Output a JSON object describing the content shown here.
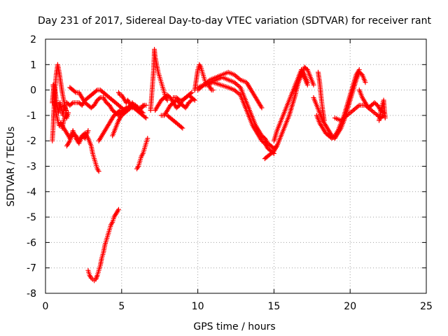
{
  "chart_data": {
    "type": "scatter",
    "title": "Day 231 of 2017, Sidereal Day-to-day VTEC variation (SDTVAR) for receiver rant",
    "xlabel": "GPS time / hours",
    "ylabel": "SDTVAR / TECUs",
    "xlim": [
      0,
      25
    ],
    "ylim": [
      -8,
      2
    ],
    "xticks": [
      0,
      5,
      10,
      15,
      20,
      25
    ],
    "yticks": [
      2,
      1,
      0,
      -1,
      -2,
      -3,
      -4,
      -5,
      -6,
      -7,
      -8
    ],
    "grid": true,
    "marker": "+",
    "marker_color": "#ff0000",
    "series": [
      {
        "name": "s1",
        "x": [
          0.45,
          0.5,
          0.55,
          0.6,
          0.7,
          0.8,
          0.9,
          1.0,
          1.1,
          1.2,
          1.3,
          1.4
        ],
        "y": [
          -2.0,
          -1.5,
          -0.8,
          -0.2,
          0.6,
          1.0,
          0.7,
          0.3,
          -0.1,
          -0.4,
          -0.7,
          -1.0
        ]
      },
      {
        "name": "s2",
        "x": [
          0.45,
          0.55,
          0.65,
          0.75,
          0.85,
          0.95,
          1.05,
          1.15,
          1.25,
          1.35
        ],
        "y": [
          -0.5,
          0.2,
          -0.1,
          -0.6,
          -0.9,
          -0.5,
          -0.7,
          -1.0,
          -0.6,
          -0.8
        ]
      },
      {
        "name": "s3",
        "x": [
          0.5,
          0.6,
          0.7,
          0.8,
          0.9,
          1.0,
          1.1,
          1.2,
          1.3,
          1.4,
          1.5
        ],
        "y": [
          0.2,
          -0.4,
          -0.9,
          -1.2,
          -1.4,
          -1.3,
          -1.5,
          -1.2,
          -1.0,
          -1.1,
          -0.9
        ]
      },
      {
        "name": "s4",
        "x": [
          1.0,
          1.2,
          1.4,
          1.6,
          1.8,
          2.0,
          2.2,
          2.4,
          2.6,
          2.8
        ],
        "y": [
          -1.3,
          -1.5,
          -1.7,
          -1.9,
          -1.7,
          -1.8,
          -2.0,
          -1.8,
          -1.9,
          -1.6
        ]
      },
      {
        "name": "s5",
        "x": [
          1.4,
          1.6,
          1.8,
          2.0,
          2.2,
          2.4,
          2.6,
          2.8,
          3.0,
          3.1,
          3.2,
          3.3,
          3.4,
          3.5
        ],
        "y": [
          -2.2,
          -2.0,
          -1.6,
          -1.9,
          -2.1,
          -1.8,
          -1.7,
          -1.9,
          -2.2,
          -2.5,
          -2.7,
          -2.9,
          -3.1,
          -3.2
        ]
      },
      {
        "name": "s6",
        "x": [
          1.4,
          1.6,
          1.8,
          2.0,
          2.2,
          2.4,
          2.6,
          2.8,
          3.0,
          3.2,
          3.4,
          3.6,
          3.8,
          4.0,
          4.2,
          4.4,
          4.6,
          4.8,
          5.0,
          5.2,
          5.4,
          5.6,
          5.8,
          6.0,
          6.2,
          6.4,
          6.6
        ],
        "y": [
          -0.5,
          -0.6,
          -0.5,
          -0.5,
          -0.5,
          -0.6,
          -0.4,
          -0.3,
          -0.2,
          -0.1,
          0.0,
          0.0,
          -0.1,
          -0.2,
          -0.3,
          -0.4,
          -0.5,
          -0.6,
          -0.7,
          -0.8,
          -0.7,
          -0.6,
          -0.7,
          -0.7,
          -0.8,
          -0.6,
          -0.6
        ]
      },
      {
        "name": "s7",
        "x": [
          1.6,
          1.8,
          2.0,
          2.2,
          2.4,
          2.6,
          2.8,
          3.0,
          3.2,
          3.4,
          3.6,
          3.8,
          4.0,
          4.2,
          4.4,
          4.6,
          4.8,
          5.0,
          5.2,
          5.4,
          5.6,
          5.8,
          6.0,
          6.2,
          6.4
        ],
        "y": [
          0.1,
          0.0,
          -0.1,
          -0.1,
          -0.3,
          -0.5,
          -0.6,
          -0.7,
          -0.6,
          -0.4,
          -0.3,
          -0.3,
          -0.5,
          -0.6,
          -0.8,
          -0.9,
          -1.0,
          -0.9,
          -0.8,
          -0.7,
          -0.6,
          -0.6,
          -0.7,
          -0.8,
          -0.9
        ]
      },
      {
        "name": "s8",
        "x": [
          3.5,
          3.7,
          3.9,
          4.1,
          4.3,
          4.5,
          4.7,
          4.9,
          5.1,
          5.3,
          5.5,
          5.7,
          5.9,
          6.1,
          6.3,
          6.5
        ],
        "y": [
          -2.0,
          -1.8,
          -1.6,
          -1.4,
          -1.2,
          -1.0,
          -0.9,
          -0.8,
          -0.8,
          -0.7,
          -0.7,
          -0.6,
          -0.6,
          -0.7,
          -0.7,
          -0.6
        ]
      },
      {
        "name": "s9",
        "x": [
          4.4,
          4.6,
          4.8,
          5.0,
          5.2,
          5.4,
          5.6,
          5.8,
          6.0,
          6.2,
          6.4,
          6.6
        ],
        "y": [
          -1.8,
          -1.5,
          -1.2,
          -1.0,
          -0.9,
          -0.8,
          -0.7,
          -0.7,
          -0.8,
          -0.9,
          -1.0,
          -1.1
        ]
      },
      {
        "name": "s10",
        "x": [
          2.8,
          2.9,
          3.0,
          3.1,
          3.2,
          3.3,
          3.4,
          3.5,
          3.6,
          3.7,
          3.8,
          3.9,
          4.0,
          4.1,
          4.2,
          4.3,
          4.4,
          4.5,
          4.6,
          4.7,
          4.8
        ],
        "y": [
          -7.1,
          -7.3,
          -7.4,
          -7.45,
          -7.5,
          -7.45,
          -7.3,
          -7.1,
          -6.9,
          -6.6,
          -6.4,
          -6.1,
          -5.9,
          -5.7,
          -5.5,
          -5.3,
          -5.2,
          -5.0,
          -4.9,
          -4.8,
          -4.7
        ]
      },
      {
        "name": "s11",
        "x": [
          6.0,
          6.1,
          6.2,
          6.3,
          6.4,
          6.5,
          6.6,
          6.7
        ],
        "y": [
          -3.1,
          -3.0,
          -2.8,
          -2.6,
          -2.5,
          -2.3,
          -2.1,
          -1.9
        ]
      },
      {
        "name": "s12",
        "x": [
          4.8,
          4.9,
          5.0,
          5.1,
          5.2,
          5.3,
          5.4,
          5.5,
          5.6,
          5.7,
          5.8,
          5.9,
          6.0
        ],
        "y": [
          -0.1,
          -0.2,
          -0.2,
          -0.3,
          -0.4,
          -0.5,
          -0.4,
          -0.5,
          -0.6,
          -0.5,
          -0.6,
          -0.6,
          -0.7
        ]
      },
      {
        "name": "s13",
        "x": [
          6.9,
          7.0,
          7.1,
          7.15,
          7.2,
          7.3,
          7.4,
          7.5,
          7.6,
          7.7,
          7.8,
          7.9,
          8.0
        ],
        "y": [
          -0.8,
          0.0,
          0.8,
          1.6,
          1.3,
          1.0,
          0.7,
          0.5,
          0.3,
          0.1,
          -0.1,
          -0.3,
          -0.4
        ]
      },
      {
        "name": "s14",
        "x": [
          7.2,
          7.4,
          7.6,
          7.8,
          8.0,
          8.2,
          8.4,
          8.6,
          8.8,
          9.0,
          9.2,
          9.4,
          9.6
        ],
        "y": [
          -0.8,
          -0.6,
          -0.4,
          -0.3,
          -0.2,
          -0.3,
          -0.5,
          -0.7,
          -0.6,
          -0.4,
          -0.3,
          -0.2,
          -0.1
        ]
      },
      {
        "name": "s15",
        "x": [
          7.6,
          7.8,
          8.0,
          8.2,
          8.4,
          8.6,
          8.8,
          9.0,
          9.2,
          9.4,
          9.6
        ],
        "y": [
          -1.0,
          -1.0,
          -0.8,
          -0.6,
          -0.5,
          -0.4,
          -0.5,
          -0.6,
          -0.7,
          -0.5,
          -0.4
        ]
      },
      {
        "name": "s16",
        "x": [
          8.0,
          8.2,
          8.4,
          8.6,
          8.8,
          9.0
        ],
        "y": [
          -1.0,
          -1.1,
          -1.2,
          -1.3,
          -1.4,
          -1.5
        ]
      },
      {
        "name": "s17",
        "x": [
          8.4,
          8.6,
          8.8,
          9.0,
          9.2,
          9.4,
          9.6,
          9.8
        ],
        "y": [
          -0.3,
          -0.3,
          -0.4,
          -0.4,
          -0.3,
          -0.2,
          -0.3,
          -0.4
        ]
      },
      {
        "name": "s18",
        "x": [
          9.8,
          9.9,
          10.0,
          10.1,
          10.2,
          10.3,
          10.4,
          10.5,
          10.6,
          10.7,
          10.8,
          10.9,
          11.0
        ],
        "y": [
          0.0,
          0.4,
          0.8,
          1.0,
          0.9,
          0.7,
          0.5,
          0.3,
          0.2,
          0.2,
          0.1,
          0.0,
          0.0
        ]
      },
      {
        "name": "s19",
        "x": [
          10.0,
          10.4,
          10.8,
          11.2,
          11.6,
          12.0,
          12.4,
          12.8,
          13.2,
          13.4,
          13.6,
          13.8,
          14.0,
          14.2
        ],
        "y": [
          0.0,
          0.2,
          0.4,
          0.5,
          0.6,
          0.7,
          0.6,
          0.4,
          0.3,
          0.1,
          -0.1,
          -0.3,
          -0.5,
          -0.7
        ]
      },
      {
        "name": "s20",
        "x": [
          10.0,
          10.4,
          10.8,
          11.2,
          11.6,
          12.0,
          12.4,
          12.8,
          13.0,
          13.2,
          13.4,
          13.6,
          13.8,
          14.0,
          14.2,
          14.4,
          14.6,
          14.8,
          15.0,
          15.2
        ],
        "y": [
          0.1,
          0.2,
          0.3,
          0.4,
          0.5,
          0.4,
          0.3,
          0.1,
          -0.2,
          -0.5,
          -0.8,
          -1.1,
          -1.4,
          -1.6,
          -1.8,
          -1.9,
          -2.1,
          -2.2,
          -2.3,
          -2.2
        ]
      },
      {
        "name": "s21",
        "x": [
          10.5,
          11.0,
          11.5,
          12.0,
          12.4,
          12.8,
          13.0,
          13.2,
          13.4,
          13.6,
          13.8,
          14.0,
          14.2,
          14.4,
          14.6,
          14.8,
          15.0
        ],
        "y": [
          0.2,
          0.3,
          0.2,
          0.1,
          0.0,
          -0.2,
          -0.5,
          -0.8,
          -1.1,
          -1.4,
          -1.6,
          -1.8,
          -2.0,
          -2.1,
          -2.3,
          -2.4,
          -2.5
        ]
      },
      {
        "name": "s22",
        "x": [
          14.4,
          14.6,
          14.8,
          15.0,
          15.2,
          15.4,
          15.6,
          15.8,
          16.0,
          16.2,
          16.4,
          16.6,
          16.8,
          17.0,
          17.2
        ],
        "y": [
          -2.7,
          -2.6,
          -2.5,
          -2.4,
          -2.2,
          -1.9,
          -1.6,
          -1.3,
          -1.0,
          -0.6,
          -0.2,
          0.3,
          0.7,
          0.5,
          0.2
        ]
      },
      {
        "name": "s23",
        "x": [
          15.0,
          15.2,
          15.4,
          15.6,
          15.8,
          16.0,
          16.2,
          16.4,
          16.6,
          16.8,
          17.0,
          17.2
        ],
        "y": [
          -2.0,
          -1.6,
          -1.3,
          -1.0,
          -0.7,
          -0.4,
          -0.1,
          0.2,
          0.5,
          0.8,
          0.6,
          0.3
        ]
      },
      {
        "name": "s24",
        "x": [
          16.4,
          16.6,
          16.8,
          17.0,
          17.2,
          17.4,
          17.6
        ],
        "y": [
          0.0,
          0.3,
          0.6,
          0.9,
          0.8,
          0.5,
          0.2
        ]
      },
      {
        "name": "s25",
        "x": [
          17.6,
          17.8,
          18.0,
          18.2,
          18.4,
          18.6,
          18.8,
          19.0,
          19.2,
          19.4,
          19.6,
          19.8,
          20.0,
          20.2,
          20.4,
          20.6,
          20.8,
          21.0
        ],
        "y": [
          -0.3,
          -0.6,
          -0.9,
          -1.2,
          -1.4,
          -1.6,
          -1.8,
          -1.9,
          -1.7,
          -1.5,
          -1.2,
          -0.8,
          -0.4,
          0.0,
          0.4,
          0.7,
          0.6,
          0.3
        ]
      },
      {
        "name": "s26",
        "x": [
          17.8,
          18.0,
          18.2,
          18.4,
          18.6,
          18.8,
          19.0,
          19.2,
          19.4,
          19.6,
          19.8,
          20.0,
          20.2,
          20.4,
          20.6
        ],
        "y": [
          -1.0,
          -1.3,
          -1.5,
          -1.7,
          -1.8,
          -1.9,
          -1.8,
          -1.6,
          -1.3,
          -1.0,
          -0.6,
          -0.2,
          0.2,
          0.6,
          0.8
        ]
      },
      {
        "name": "s27",
        "x": [
          17.9,
          18.0,
          18.1,
          18.2,
          18.3
        ],
        "y": [
          0.7,
          0.3,
          -0.3,
          -0.8,
          -1.2
        ]
      },
      {
        "name": "s28",
        "x": [
          19.0,
          19.4,
          19.8,
          20.2,
          20.6,
          21.0,
          21.4,
          21.8,
          22.0,
          22.2
        ],
        "y": [
          -1.1,
          -1.2,
          -1.0,
          -0.8,
          -0.6,
          -0.6,
          -0.8,
          -1.0,
          -1.1,
          -1.0
        ]
      },
      {
        "name": "s29",
        "x": [
          20.6,
          20.8,
          21.0,
          21.2,
          21.4,
          21.6,
          21.8,
          22.0,
          22.2
        ],
        "y": [
          0.0,
          -0.3,
          -0.5,
          -0.7,
          -0.6,
          -0.5,
          -0.6,
          -0.8,
          -0.9
        ]
      },
      {
        "name": "s30",
        "x": [
          21.9,
          22.0,
          22.1,
          22.2,
          22.3
        ],
        "y": [
          -1.2,
          -0.9,
          -0.6,
          -0.4,
          -1.1
        ]
      }
    ]
  }
}
